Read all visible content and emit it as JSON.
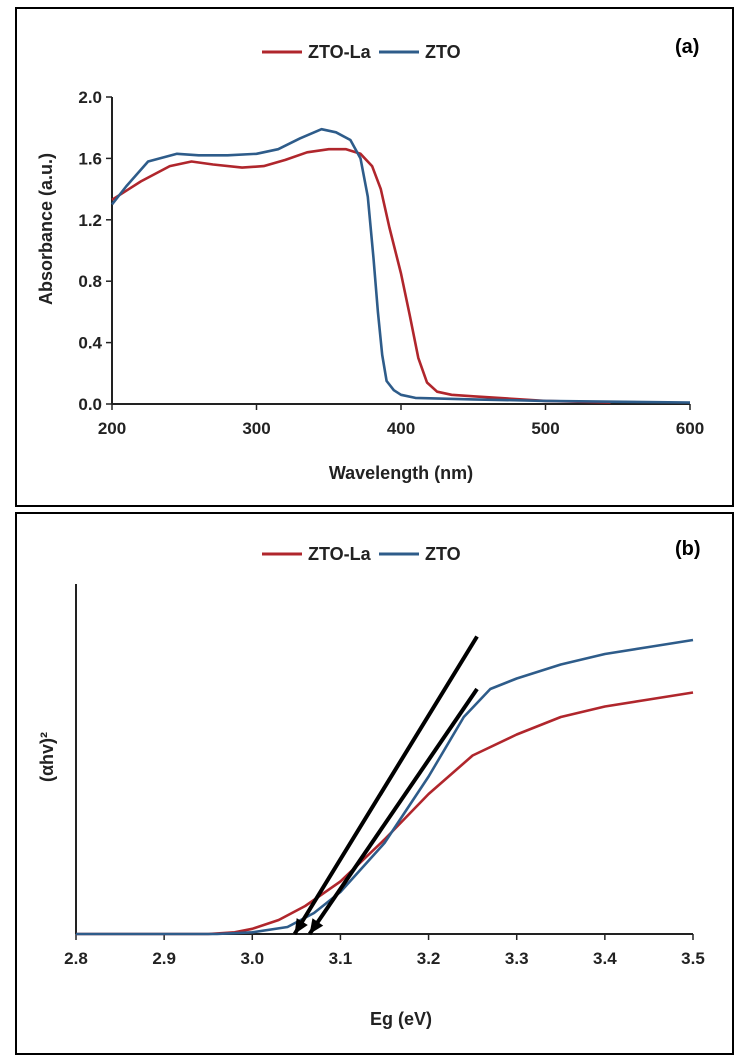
{
  "colors": {
    "zto_la": "#B0262C",
    "zto": "#2E5C8A",
    "axis": "#222222",
    "tangent": "#000000"
  },
  "chart_data": [
    {
      "type": "line",
      "panel_label": "(a)",
      "xlabel": "Wavelength (nm)",
      "ylabel": "Absorbance (a.u.)",
      "xlim": [
        200,
        600
      ],
      "ylim": [
        0,
        2.0
      ],
      "x_ticks": [
        200,
        300,
        400,
        500,
        600
      ],
      "x_tick_labels": [
        "200",
        "300",
        "400",
        "500",
        "600"
      ],
      "y_ticks": [
        0,
        0.4,
        0.8,
        1.2,
        1.6,
        2.0
      ],
      "y_tick_labels": [
        "0.0",
        "0.4",
        "0.8",
        "1.2",
        "1.6",
        "2.0"
      ],
      "legend": [
        "ZTO-La",
        "ZTO"
      ],
      "series": [
        {
          "name": "ZTO-La",
          "x": [
            200,
            220,
            240,
            255,
            270,
            290,
            305,
            320,
            335,
            350,
            362,
            372,
            380,
            386,
            392,
            400,
            406,
            412,
            418,
            425,
            435,
            450,
            500,
            545
          ],
          "y": [
            1.33,
            1.45,
            1.55,
            1.58,
            1.56,
            1.54,
            1.55,
            1.59,
            1.64,
            1.66,
            1.66,
            1.63,
            1.55,
            1.4,
            1.15,
            0.85,
            0.58,
            0.3,
            0.14,
            0.08,
            0.06,
            0.05,
            0.02,
            0.01
          ]
        },
        {
          "name": "ZTO",
          "x": [
            200,
            210,
            225,
            245,
            260,
            280,
            300,
            315,
            330,
            345,
            355,
            365,
            372,
            377,
            381,
            384,
            387,
            390,
            395,
            400,
            410,
            450,
            500,
            600
          ],
          "y": [
            1.3,
            1.42,
            1.58,
            1.63,
            1.62,
            1.62,
            1.63,
            1.66,
            1.73,
            1.79,
            1.77,
            1.72,
            1.6,
            1.35,
            0.95,
            0.6,
            0.32,
            0.15,
            0.09,
            0.06,
            0.04,
            0.03,
            0.02,
            0.01
          ]
        }
      ]
    },
    {
      "type": "line",
      "panel_label": "(b)",
      "xlabel": "Eg (eV)",
      "ylabel": "(αhv)²",
      "xlim": [
        2.8,
        3.5
      ],
      "ylim": [
        0,
        1.0
      ],
      "x_ticks": [
        2.8,
        2.9,
        3.0,
        3.1,
        3.2,
        3.3,
        3.4,
        3.5
      ],
      "x_tick_labels": [
        "2.8",
        "2.9",
        "3.0",
        "3.1",
        "3.2",
        "3.3",
        "3.4",
        "3.5"
      ],
      "legend": [
        "ZTO-La",
        "ZTO"
      ],
      "series": [
        {
          "name": "ZTO-La",
          "x": [
            2.8,
            2.95,
            2.98,
            3.0,
            3.03,
            3.06,
            3.1,
            3.15,
            3.2,
            3.25,
            3.3,
            3.35,
            3.4,
            3.45,
            3.5
          ],
          "y": [
            0.0,
            0.0,
            0.005,
            0.015,
            0.04,
            0.08,
            0.15,
            0.27,
            0.4,
            0.51,
            0.57,
            0.62,
            0.65,
            0.67,
            0.69
          ]
        },
        {
          "name": "ZTO",
          "x": [
            2.8,
            2.96,
            3.0,
            3.04,
            3.07,
            3.1,
            3.15,
            3.2,
            3.24,
            3.27,
            3.3,
            3.35,
            3.4,
            3.45,
            3.5
          ],
          "y": [
            0.0,
            0.0,
            0.005,
            0.02,
            0.06,
            0.12,
            0.26,
            0.45,
            0.62,
            0.7,
            0.73,
            0.77,
            0.8,
            0.82,
            0.84
          ]
        }
      ],
      "tangents": [
        {
          "name": "ZTO tangent",
          "from": [
            3.048,
            0.0
          ],
          "to": [
            3.255,
            0.85
          ]
        },
        {
          "name": "ZTO-La tangent",
          "from": [
            3.065,
            0.0
          ],
          "to": [
            3.255,
            0.7
          ]
        }
      ]
    }
  ]
}
